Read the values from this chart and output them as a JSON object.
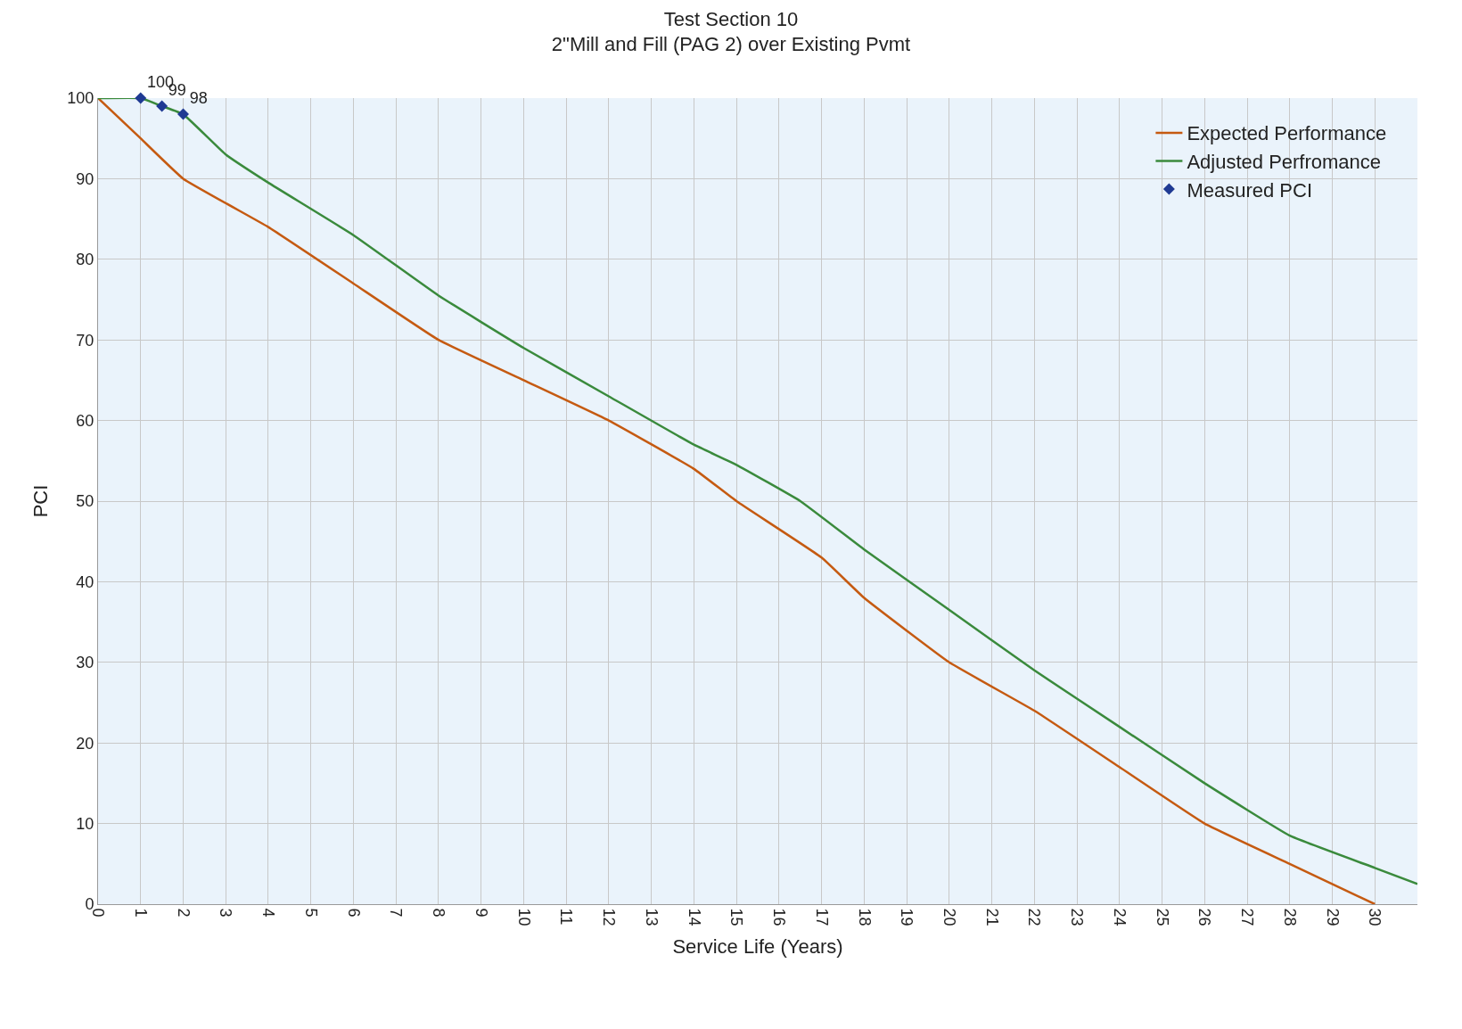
{
  "chart_data": {
    "type": "line",
    "title": "Test Section 10",
    "subtitle": "2\"Mill and Fill (PAG 2) over Existing Pvmt",
    "xlabel": "Service Life (Years)",
    "ylabel": "PCI",
    "xlim": [
      0,
      31
    ],
    "xticks": [
      0,
      1,
      2,
      3,
      4,
      5,
      6,
      7,
      8,
      9,
      10,
      11,
      12,
      13,
      14,
      15,
      16,
      17,
      18,
      19,
      20,
      21,
      22,
      23,
      24,
      25,
      26,
      27,
      28,
      29,
      30
    ],
    "ylim": [
      0,
      100
    ],
    "yticks": [
      0,
      10,
      20,
      30,
      40,
      50,
      60,
      70,
      80,
      90,
      100
    ],
    "grid": true,
    "legend": "top right",
    "series": [
      {
        "name": "Expected Performance",
        "color": "#c55a11",
        "x": [
          0,
          1,
          2,
          4,
          6,
          8,
          10,
          12,
          14,
          15,
          17,
          18,
          20,
          22,
          24,
          26,
          28,
          30
        ],
        "values": [
          100,
          95,
          90,
          84,
          77,
          70,
          65,
          60,
          54,
          50,
          43,
          38,
          30,
          24,
          17,
          10,
          5,
          0
        ]
      },
      {
        "name": "Adjusted Perfromance",
        "color": "#3a8a3c",
        "x": [
          0,
          1,
          1.5,
          2,
          3,
          4,
          6,
          8,
          10,
          12,
          14,
          15,
          16.5,
          18,
          20,
          22,
          24,
          26,
          28,
          30,
          31
        ],
        "values": [
          100,
          100,
          99,
          98,
          93,
          89.5,
          83,
          75.5,
          69,
          63,
          57,
          54.5,
          50,
          44,
          36.5,
          29,
          22,
          15,
          8.5,
          4.5,
          2.5
        ]
      },
      {
        "name": "Measured PCI",
        "color": "#1f3a93",
        "type": "scatter",
        "marker": "diamond",
        "x": [
          1,
          1.5,
          2
        ],
        "values": [
          100,
          99,
          98
        ],
        "data_labels": true
      }
    ]
  }
}
